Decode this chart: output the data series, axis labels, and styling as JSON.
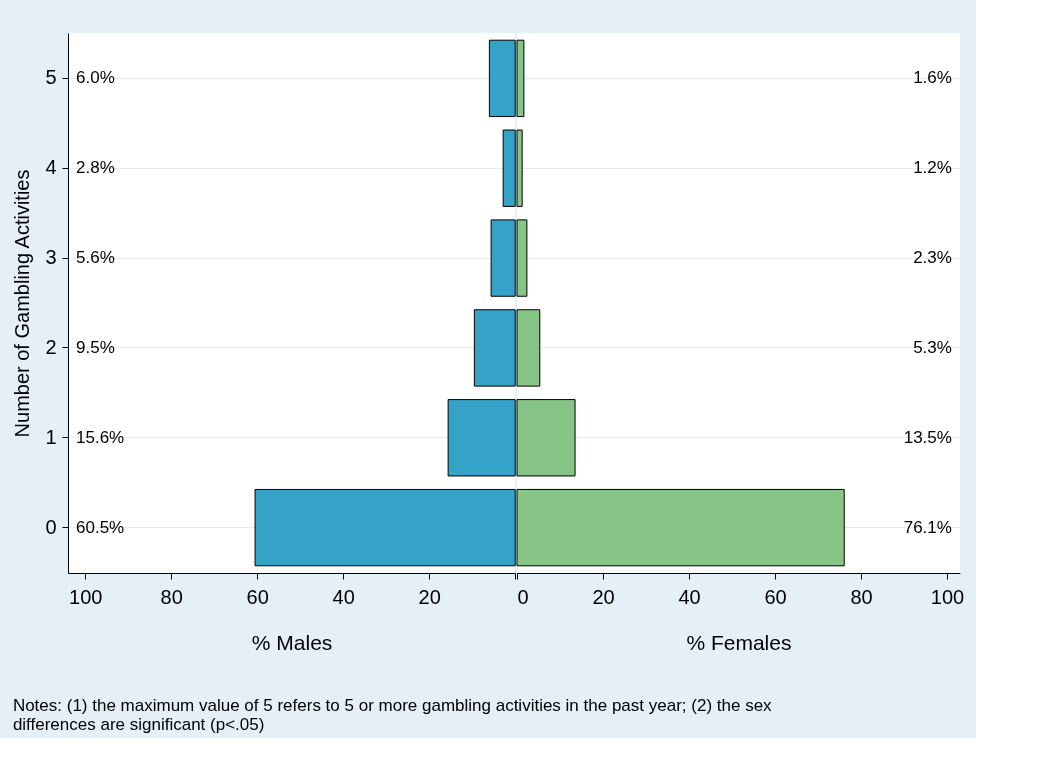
{
  "chart_data": [
    {
      "type": "bar",
      "orientation": "horizontal",
      "ylabel": "Number of Gambling Activities",
      "xlabel": "% Males",
      "categories": [
        "5",
        "4",
        "3",
        "2",
        "1",
        "0"
      ],
      "color": "#35a2c8",
      "values": [
        6.0,
        2.8,
        5.6,
        9.5,
        15.6,
        60.5
      ],
      "value_labels": [
        "6.0%",
        "2.8%",
        "5.6%",
        "9.5%",
        "15.6%",
        "60.5%"
      ],
      "xlim": [
        104,
        0
      ],
      "xticks": [
        100,
        80,
        60,
        40,
        20,
        {
          "value": 0,
          "label": null
        }
      ],
      "grid": "y",
      "annotations": [
        "Notes: (1) the maximum value of 5 refers to 5 or more gambling activities in the past year; (2) the sex differences are significant (p<.05)"
      ]
    },
    {
      "type": "bar",
      "orientation": "horizontal",
      "xlabel": "% Females",
      "categories": [
        "5",
        "4",
        "3",
        "2",
        "1",
        "0"
      ],
      "color": "#87c587",
      "values": [
        1.6,
        1.2,
        2.3,
        5.3,
        13.5,
        76.1
      ],
      "value_labels": [
        "1.6%",
        "1.2%",
        "2.3%",
        "5.3%",
        "13.5%",
        "76.1%"
      ],
      "xlim": [
        0,
        103
      ],
      "xticks": [
        0,
        20,
        40,
        60,
        80,
        100
      ],
      "grid": "y",
      "tick_labels": "x"
    }
  ]
}
